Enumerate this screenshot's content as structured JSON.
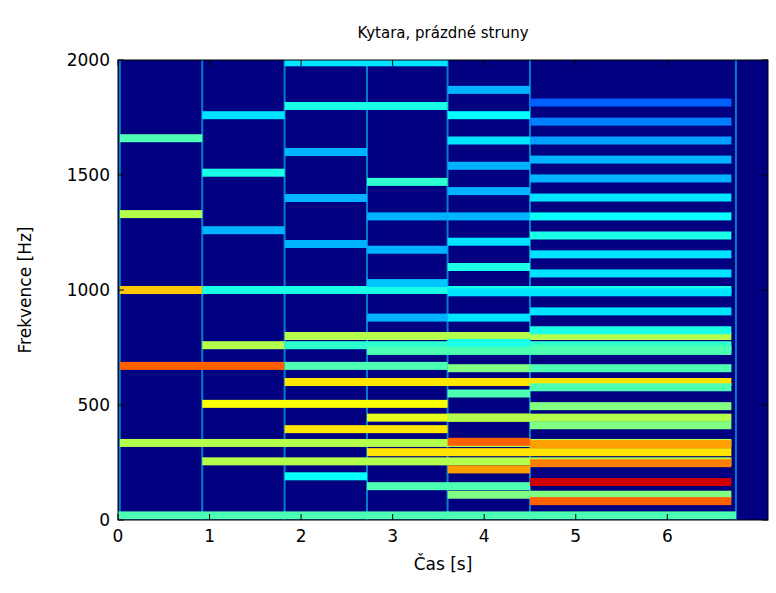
{
  "chart_data": {
    "type": "spectrogram",
    "title": "Kytara, prázdné struny",
    "x_label": "Čas [s]",
    "y_label": "Frekvence [Hz]",
    "xlim": [
      0,
      7.1
    ],
    "ylim": [
      0,
      2000
    ],
    "xticks": [
      0,
      1,
      2,
      3,
      4,
      5,
      6
    ],
    "yticks": [
      0,
      500,
      1000,
      1500,
      2000
    ],
    "zlim": [
      0,
      1
    ],
    "onsets": [
      0.02,
      0.92,
      1.82,
      2.72,
      3.6,
      4.5,
      6.75
    ],
    "bands": [
      {
        "f": 20,
        "t0": 0,
        "t1": 6.75,
        "level": 0.45
      },
      {
        "f": 335,
        "t0": 0.02,
        "t1": 6.7,
        "level": 0.55
      },
      {
        "f": 670,
        "t0": 0.02,
        "t1": 1.82,
        "level": 0.78
      },
      {
        "f": 670,
        "t0": 1.82,
        "t1": 3.6,
        "level": 0.45
      },
      {
        "f": 1000,
        "t0": 0.02,
        "t1": 0.92,
        "level": 0.68
      },
      {
        "f": 1000,
        "t0": 0.92,
        "t1": 6.7,
        "level": 0.4
      },
      {
        "f": 1330,
        "t0": 0.02,
        "t1": 0.92,
        "level": 0.55
      },
      {
        "f": 1660,
        "t0": 0.02,
        "t1": 0.92,
        "level": 0.45
      },
      {
        "f": 1990,
        "t0": 1.82,
        "t1": 3.6,
        "level": 0.35
      },
      {
        "f": 255,
        "t0": 0.92,
        "t1": 6.7,
        "level": 0.55
      },
      {
        "f": 505,
        "t0": 0.92,
        "t1": 3.6,
        "level": 0.62
      },
      {
        "f": 760,
        "t0": 0.92,
        "t1": 1.82,
        "level": 0.55
      },
      {
        "f": 760,
        "t0": 1.82,
        "t1": 6.7,
        "level": 0.42
      },
      {
        "f": 1260,
        "t0": 0.92,
        "t1": 1.82,
        "level": 0.3
      },
      {
        "f": 1510,
        "t0": 0.92,
        "t1": 1.82,
        "level": 0.4
      },
      {
        "f": 1760,
        "t0": 0.92,
        "t1": 1.82,
        "level": 0.35
      },
      {
        "f": 190,
        "t0": 1.82,
        "t1": 2.72,
        "level": 0.38
      },
      {
        "f": 395,
        "t0": 1.82,
        "t1": 3.6,
        "level": 0.65
      },
      {
        "f": 600,
        "t0": 1.82,
        "t1": 6.7,
        "level": 0.65
      },
      {
        "f": 800,
        "t0": 1.82,
        "t1": 6.7,
        "level": 0.55
      },
      {
        "f": 1200,
        "t0": 1.82,
        "t1": 2.72,
        "level": 0.3
      },
      {
        "f": 1400,
        "t0": 1.82,
        "t1": 2.72,
        "level": 0.3
      },
      {
        "f": 1600,
        "t0": 1.82,
        "t1": 2.72,
        "level": 0.3
      },
      {
        "f": 1800,
        "t0": 1.82,
        "t1": 3.6,
        "level": 0.4
      },
      {
        "f": 147,
        "t0": 2.72,
        "t1": 4.5,
        "level": 0.45
      },
      {
        "f": 295,
        "t0": 2.72,
        "t1": 6.7,
        "level": 0.65
      },
      {
        "f": 445,
        "t0": 2.72,
        "t1": 4.5,
        "level": 0.6
      },
      {
        "f": 735,
        "t0": 2.72,
        "t1": 6.7,
        "level": 0.45
      },
      {
        "f": 880,
        "t0": 2.72,
        "t1": 3.6,
        "level": 0.3
      },
      {
        "f": 1030,
        "t0": 2.72,
        "t1": 3.6,
        "level": 0.32
      },
      {
        "f": 1175,
        "t0": 2.72,
        "t1": 3.6,
        "level": 0.3
      },
      {
        "f": 1320,
        "t0": 2.72,
        "t1": 3.6,
        "level": 0.3
      },
      {
        "f": 1470,
        "t0": 2.72,
        "t1": 3.6,
        "level": 0.42
      },
      {
        "f": 110,
        "t0": 3.6,
        "t1": 6.7,
        "level": 0.5
      },
      {
        "f": 220,
        "t0": 3.6,
        "t1": 4.5,
        "level": 0.72
      },
      {
        "f": 340,
        "t0": 3.6,
        "t1": 4.5,
        "level": 0.78
      },
      {
        "f": 445,
        "t0": 3.6,
        "t1": 6.7,
        "level": 0.55
      },
      {
        "f": 550,
        "t0": 3.6,
        "t1": 4.5,
        "level": 0.45
      },
      {
        "f": 660,
        "t0": 3.6,
        "t1": 4.5,
        "level": 0.5
      },
      {
        "f": 770,
        "t0": 3.6,
        "t1": 4.5,
        "level": 0.4
      },
      {
        "f": 880,
        "t0": 3.6,
        "t1": 4.5,
        "level": 0.35
      },
      {
        "f": 990,
        "t0": 3.6,
        "t1": 4.5,
        "level": 0.35
      },
      {
        "f": 1100,
        "t0": 3.6,
        "t1": 4.5,
        "level": 0.4
      },
      {
        "f": 1210,
        "t0": 3.6,
        "t1": 4.5,
        "level": 0.35
      },
      {
        "f": 1320,
        "t0": 3.6,
        "t1": 4.5,
        "level": 0.3
      },
      {
        "f": 1430,
        "t0": 3.6,
        "t1": 4.5,
        "level": 0.3
      },
      {
        "f": 1540,
        "t0": 3.6,
        "t1": 4.5,
        "level": 0.3
      },
      {
        "f": 1650,
        "t0": 3.6,
        "t1": 4.5,
        "level": 0.35
      },
      {
        "f": 1760,
        "t0": 3.6,
        "t1": 4.5,
        "level": 0.38
      },
      {
        "f": 1870,
        "t0": 3.6,
        "t1": 4.5,
        "level": 0.3
      },
      {
        "f": 82,
        "t0": 4.5,
        "t1": 6.7,
        "level": 0.78
      },
      {
        "f": 165,
        "t0": 4.5,
        "t1": 6.7,
        "level": 0.92
      },
      {
        "f": 247,
        "t0": 4.5,
        "t1": 6.7,
        "level": 0.75
      },
      {
        "f": 330,
        "t0": 4.5,
        "t1": 6.7,
        "level": 0.72
      },
      {
        "f": 412,
        "t0": 4.5,
        "t1": 6.7,
        "level": 0.5
      },
      {
        "f": 495,
        "t0": 4.5,
        "t1": 6.7,
        "level": 0.5
      },
      {
        "f": 577,
        "t0": 4.5,
        "t1": 6.7,
        "level": 0.45
      },
      {
        "f": 660,
        "t0": 4.5,
        "t1": 6.7,
        "level": 0.45
      },
      {
        "f": 742,
        "t0": 4.5,
        "t1": 6.7,
        "level": 0.45
      },
      {
        "f": 825,
        "t0": 4.5,
        "t1": 6.7,
        "level": 0.4
      },
      {
        "f": 907,
        "t0": 4.5,
        "t1": 6.7,
        "level": 0.35
      },
      {
        "f": 990,
        "t0": 4.5,
        "t1": 6.7,
        "level": 0.35
      },
      {
        "f": 1072,
        "t0": 4.5,
        "t1": 6.7,
        "level": 0.35
      },
      {
        "f": 1155,
        "t0": 4.5,
        "t1": 6.7,
        "level": 0.35
      },
      {
        "f": 1237,
        "t0": 4.5,
        "t1": 6.7,
        "level": 0.4
      },
      {
        "f": 1320,
        "t0": 4.5,
        "t1": 6.7,
        "level": 0.38
      },
      {
        "f": 1402,
        "t0": 4.5,
        "t1": 6.7,
        "level": 0.35
      },
      {
        "f": 1485,
        "t0": 4.5,
        "t1": 6.7,
        "level": 0.3
      },
      {
        "f": 1567,
        "t0": 4.5,
        "t1": 6.7,
        "level": 0.3
      },
      {
        "f": 1650,
        "t0": 4.5,
        "t1": 6.7,
        "level": 0.28
      },
      {
        "f": 1732,
        "t0": 4.5,
        "t1": 6.7,
        "level": 0.25
      },
      {
        "f": 1815,
        "t0": 4.5,
        "t1": 6.7,
        "level": 0.22
      }
    ]
  }
}
